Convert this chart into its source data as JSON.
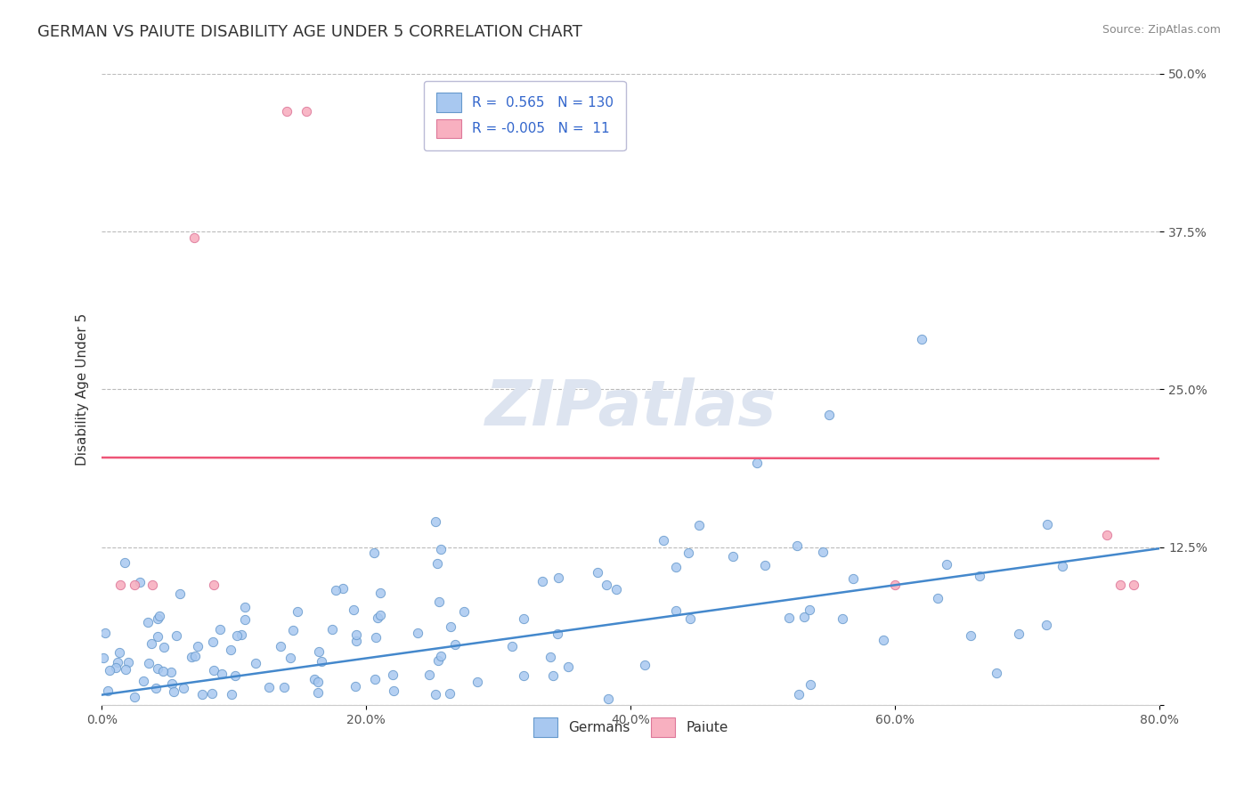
{
  "title": "GERMAN VS PAIUTE DISABILITY AGE UNDER 5 CORRELATION CHART",
  "source_text": "Source: ZipAtlas.com",
  "ylabel": "Disability Age Under 5",
  "xlim": [
    0.0,
    0.8
  ],
  "ylim": [
    0.0,
    0.5
  ],
  "xtick_labels": [
    "0.0%",
    "20.0%",
    "40.0%",
    "60.0%",
    "80.0%"
  ],
  "xtick_values": [
    0.0,
    0.2,
    0.4,
    0.6,
    0.8
  ],
  "ytick_labels": [
    "",
    "12.5%",
    "25.0%",
    "37.5%",
    "50.0%"
  ],
  "ytick_values": [
    0.0,
    0.125,
    0.25,
    0.375,
    0.5
  ],
  "german_color": "#a8c8f0",
  "german_edge_color": "#6699cc",
  "paiute_color": "#f8b0c0",
  "paiute_edge_color": "#dd7799",
  "german_line_color": "#4488cc",
  "paiute_line_color": "#ee5577",
  "german_R": 0.565,
  "german_N": 130,
  "paiute_R": -0.005,
  "paiute_N": 11,
  "background_color": "#ffffff",
  "grid_color": "#bbbbbb",
  "title_fontsize": 13,
  "axis_label_fontsize": 11,
  "legend_fontsize": 11,
  "watermark_text": "ZIPatlas",
  "watermark_color": "#dde4f0",
  "watermark_fontsize": 52,
  "legend_entries": [
    "Germans",
    "Paiute"
  ],
  "paiute_x": [
    0.014,
    0.025,
    0.038,
    0.07,
    0.085,
    0.14,
    0.155,
    0.76,
    0.77,
    0.78,
    0.6
  ],
  "paiute_y": [
    0.095,
    0.095,
    0.095,
    0.37,
    0.095,
    0.47,
    0.47,
    0.135,
    0.095,
    0.095,
    0.095
  ],
  "paiute_trend_y_intercept": 0.196,
  "paiute_trend_slope": -0.001,
  "german_trend_y_intercept": 0.008,
  "german_trend_slope": 0.145
}
